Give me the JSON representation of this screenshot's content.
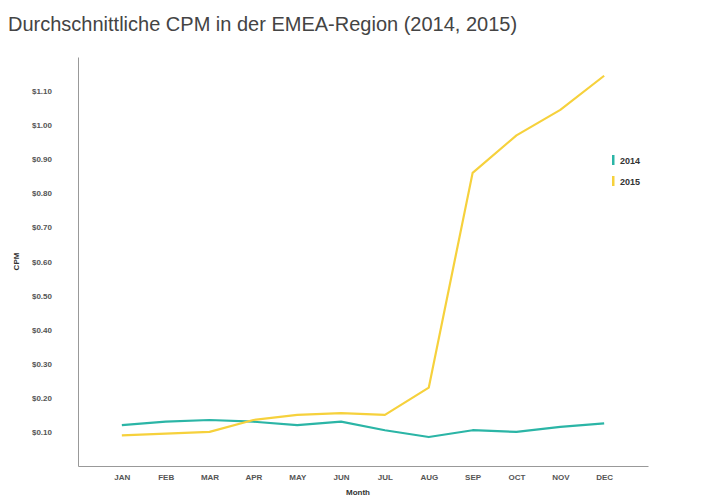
{
  "chart_data": {
    "type": "line",
    "title": "Durchschnittliche CPM in der EMEA-Region (2014, 2015)",
    "x_label": "Month",
    "y_label": "CPM",
    "categories": [
      "JAN",
      "FEB",
      "MAR",
      "APR",
      "MAY",
      "JUN",
      "JUL",
      "AUG",
      "SEP",
      "OCT",
      "NOV",
      "DEC"
    ],
    "series": [
      {
        "name": "2014",
        "color": "#2bb5a6",
        "values": [
          0.12,
          0.13,
          0.135,
          0.13,
          0.12,
          0.13,
          0.105,
          0.085,
          0.105,
          0.1,
          0.115,
          0.125
        ]
      },
      {
        "name": "2015",
        "color": "#f6d13c",
        "values": [
          0.09,
          0.095,
          0.1,
          0.135,
          0.15,
          0.155,
          0.15,
          0.23,
          0.86,
          0.97,
          1.045,
          1.145
        ]
      }
    ],
    "ylim": [
      0,
      1.2
    ],
    "yticks": [
      {
        "value": 0.1,
        "label": "$0.10"
      },
      {
        "value": 0.2,
        "label": "$0.20"
      },
      {
        "value": 0.3,
        "label": "$0.30"
      },
      {
        "value": 0.4,
        "label": "$0.40"
      },
      {
        "value": 0.5,
        "label": "$0.50"
      },
      {
        "value": 0.6,
        "label": "$0.60"
      },
      {
        "value": 0.7,
        "label": "$0.70"
      },
      {
        "value": 0.8,
        "label": "$0.80"
      },
      {
        "value": 0.9,
        "label": "$0.90"
      },
      {
        "value": 1.0,
        "label": "$1.00"
      },
      {
        "value": 1.1,
        "label": "$1.10"
      }
    ],
    "grid": false,
    "legend": "upper right"
  }
}
